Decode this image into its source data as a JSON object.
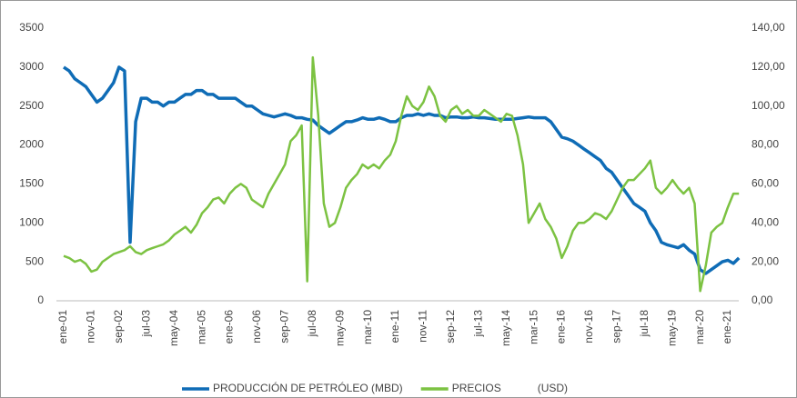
{
  "chart_data": {
    "type": "line",
    "categories": [
      "ene-01",
      null,
      null,
      null,
      null,
      "nov-01",
      null,
      null,
      null,
      null,
      "sep-02",
      null,
      null,
      null,
      null,
      "jul-03",
      null,
      null,
      null,
      null,
      "may-04",
      null,
      null,
      null,
      null,
      "mar-05",
      null,
      null,
      null,
      null,
      "ene-06",
      null,
      null,
      null,
      null,
      "nov-06",
      null,
      null,
      null,
      null,
      "sep-07",
      null,
      null,
      null,
      null,
      "jul-08",
      null,
      null,
      null,
      null,
      "may-09",
      null,
      null,
      null,
      null,
      "mar-10",
      null,
      null,
      null,
      null,
      "ene-11",
      null,
      null,
      null,
      null,
      "nov-11",
      null,
      null,
      null,
      null,
      "sep-12",
      null,
      null,
      null,
      null,
      "jul-13",
      null,
      null,
      null,
      null,
      "may-14",
      null,
      null,
      null,
      null,
      "mar-15",
      null,
      null,
      null,
      null,
      "ene-16",
      null,
      null,
      null,
      null,
      "nov-16",
      null,
      null,
      null,
      null,
      "sep-17",
      null,
      null,
      null,
      null,
      "jul-18",
      null,
      null,
      null,
      null,
      "may-19",
      null,
      null,
      null,
      null,
      "mar-20",
      null,
      null,
      null,
      null,
      "ene-21",
      null,
      null
    ],
    "series": [
      {
        "name": "PRODUCCIÓN DE PETRÓLEO (MBD)",
        "color": "#0f6cb6",
        "values": [
          3000,
          2950,
          2850,
          2800,
          2750,
          2650,
          2550,
          2600,
          2700,
          2800,
          3000,
          2950,
          750,
          2300,
          2600,
          2600,
          2550,
          2550,
          2500,
          2550,
          2550,
          2600,
          2650,
          2650,
          2700,
          2700,
          2650,
          2650,
          2600,
          2600,
          2600,
          2600,
          2550,
          2500,
          2500,
          2450,
          2400,
          2380,
          2360,
          2380,
          2400,
          2380,
          2350,
          2350,
          2330,
          2320,
          2250,
          2200,
          2150,
          2200,
          2250,
          2300,
          2300,
          2320,
          2350,
          2330,
          2330,
          2350,
          2330,
          2300,
          2300,
          2350,
          2380,
          2380,
          2400,
          2380,
          2400,
          2380,
          2380,
          2350,
          2360,
          2360,
          2350,
          2350,
          2360,
          2350,
          2350,
          2340,
          2330,
          2330,
          2330,
          2330,
          2340,
          2350,
          2360,
          2350,
          2350,
          2350,
          2300,
          2200,
          2100,
          2080,
          2050,
          2000,
          1950,
          1900,
          1850,
          1800,
          1700,
          1650,
          1550,
          1450,
          1350,
          1250,
          1200,
          1150,
          1000,
          900,
          750,
          720,
          700,
          680,
          720,
          650,
          600,
          400,
          350,
          400,
          450,
          500,
          520,
          480,
          550
        ]
      },
      {
        "name": "PRECIOS",
        "color": "#7cc242",
        "axis": "y2",
        "values": [
          23,
          22,
          20,
          21,
          19,
          15,
          16,
          20,
          22,
          24,
          25,
          26,
          28,
          25,
          24,
          26,
          27,
          28,
          29,
          31,
          34,
          36,
          38,
          35,
          39,
          45,
          48,
          52,
          53,
          50,
          55,
          58,
          60,
          58,
          52,
          50,
          48,
          55,
          60,
          65,
          70,
          82,
          85,
          90,
          10,
          125,
          95,
          50,
          38,
          40,
          48,
          58,
          62,
          65,
          70,
          68,
          70,
          68,
          72,
          75,
          82,
          95,
          105,
          100,
          98,
          102,
          110,
          105,
          95,
          92,
          98,
          100,
          96,
          98,
          95,
          95,
          98,
          96,
          94,
          92,
          96,
          95,
          85,
          70,
          40,
          45,
          50,
          42,
          38,
          32,
          22,
          28,
          36,
          40,
          40,
          42,
          45,
          44,
          42,
          46,
          52,
          58,
          62,
          62,
          65,
          68,
          72,
          58,
          55,
          58,
          62,
          58,
          55,
          58,
          50,
          5,
          18,
          35,
          38,
          40,
          48,
          55,
          55
        ]
      }
    ],
    "legend_note": "(USD)",
    "ylim": [
      0,
      3500
    ],
    "yticks": [
      0,
      500,
      1000,
      1500,
      2000,
      2500,
      3000,
      3500
    ],
    "y2lim": [
      0,
      140
    ],
    "y2ticks": [
      {
        "value": 0,
        "label": "0,00"
      },
      {
        "value": 20,
        "label": "20,00"
      },
      {
        "value": 40,
        "label": "40,00"
      },
      {
        "value": 60,
        "label": "60,00"
      },
      {
        "value": 80,
        "label": "80,00"
      },
      {
        "value": 100,
        "label": "100,00"
      },
      {
        "value": 120,
        "label": "120,00"
      },
      {
        "value": 140,
        "label": "140,00"
      }
    ],
    "grid": false,
    "legend": "bottom"
  }
}
